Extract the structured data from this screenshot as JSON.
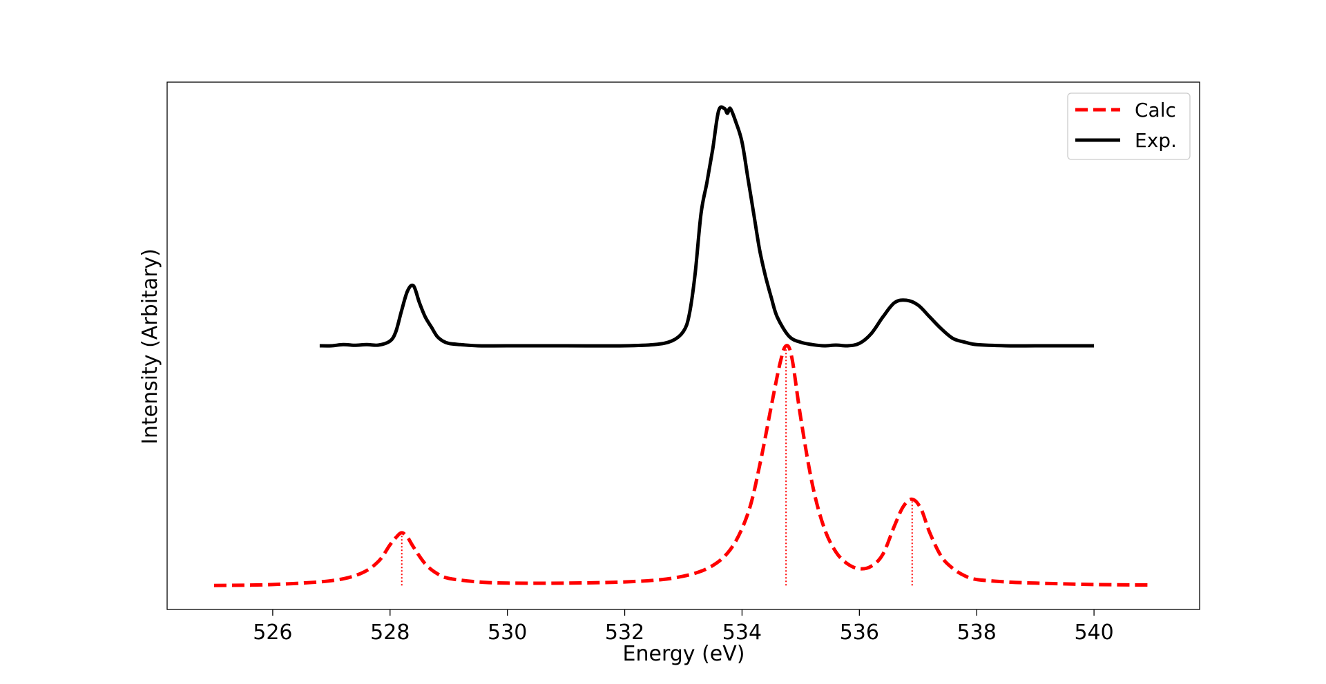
{
  "chart_data": {
    "type": "line",
    "title": "",
    "xlabel": "Energy (eV)",
    "ylabel": "Intensity (Arbitary)",
    "xlim": [
      524.2,
      541.8
    ],
    "ylim": [
      -0.1,
      2.1
    ],
    "x_ticks": [
      526,
      528,
      530,
      532,
      534,
      536,
      538,
      540
    ],
    "x_tick_labels": [
      "526",
      "528",
      "530",
      "532",
      "534",
      "536",
      "538",
      "540"
    ],
    "y_ticks_shown": false,
    "grid": false,
    "legend": {
      "placement": "top-right"
    },
    "series": [
      {
        "name": "Calc",
        "color": "#ff0000",
        "style": "dashed",
        "x": [
          525.0,
          526.0,
          527.0,
          527.5,
          527.8,
          528.0,
          528.1,
          528.2,
          528.3,
          528.4,
          528.6,
          528.8,
          529.0,
          529.5,
          530.0,
          531.0,
          532.0,
          532.8,
          533.4,
          533.8,
          534.1,
          534.3,
          534.5,
          534.65,
          534.75,
          534.85,
          535.0,
          535.2,
          535.4,
          535.6,
          535.8,
          536.0,
          536.2,
          536.4,
          536.6,
          536.75,
          536.9,
          537.05,
          537.2,
          537.4,
          537.6,
          537.8,
          538.0,
          538.5,
          539.0,
          540.0,
          541.0
        ],
        "y": [
          0.0,
          0.004,
          0.02,
          0.05,
          0.1,
          0.17,
          0.2,
          0.22,
          0.2,
          0.16,
          0.09,
          0.05,
          0.03,
          0.015,
          0.01,
          0.01,
          0.015,
          0.03,
          0.07,
          0.15,
          0.3,
          0.5,
          0.75,
          0.93,
          1.0,
          0.95,
          0.7,
          0.42,
          0.24,
          0.14,
          0.09,
          0.07,
          0.08,
          0.13,
          0.25,
          0.33,
          0.36,
          0.32,
          0.22,
          0.12,
          0.07,
          0.04,
          0.025,
          0.015,
          0.01,
          0.004,
          0.002
        ]
      },
      {
        "name": "Exp.",
        "color": "#000000",
        "style": "solid",
        "x": [
          526.8,
          527.0,
          527.2,
          527.4,
          527.6,
          527.8,
          528.0,
          528.1,
          528.2,
          528.3,
          528.4,
          528.5,
          528.6,
          528.7,
          528.8,
          528.9,
          529.0,
          529.2,
          529.5,
          530.0,
          531.0,
          532.0,
          532.5,
          532.8,
          533.0,
          533.1,
          533.2,
          533.3,
          533.4,
          533.5,
          533.6,
          533.7,
          533.75,
          533.8,
          533.9,
          534.0,
          534.1,
          534.2,
          534.3,
          534.4,
          534.5,
          534.6,
          534.8,
          535.0,
          535.2,
          535.4,
          535.6,
          535.8,
          536.0,
          536.2,
          536.4,
          536.6,
          536.8,
          537.0,
          537.2,
          537.4,
          537.6,
          537.8,
          538.0,
          538.5,
          539.0,
          539.5,
          540.0
        ],
        "y": [
          1.0,
          1.0,
          1.005,
          1.002,
          1.005,
          1.003,
          1.02,
          1.06,
          1.15,
          1.23,
          1.25,
          1.18,
          1.12,
          1.08,
          1.04,
          1.02,
          1.01,
          1.005,
          1.0,
          1.0,
          1.0,
          1.0,
          1.005,
          1.02,
          1.06,
          1.13,
          1.3,
          1.55,
          1.68,
          1.82,
          1.98,
          1.99,
          1.97,
          1.99,
          1.93,
          1.85,
          1.7,
          1.55,
          1.4,
          1.29,
          1.2,
          1.12,
          1.04,
          1.015,
          1.005,
          1.0,
          1.003,
          1.0,
          1.01,
          1.05,
          1.12,
          1.18,
          1.19,
          1.17,
          1.12,
          1.07,
          1.03,
          1.015,
          1.005,
          1.0,
          1.0,
          1.0,
          1.0
        ]
      }
    ],
    "stick_lines": {
      "series": "Calc",
      "color": "#ff0000",
      "style": "dotted",
      "x": [
        528.2,
        534.75,
        536.9
      ],
      "y": [
        0.22,
        1.0,
        0.36
      ]
    }
  }
}
